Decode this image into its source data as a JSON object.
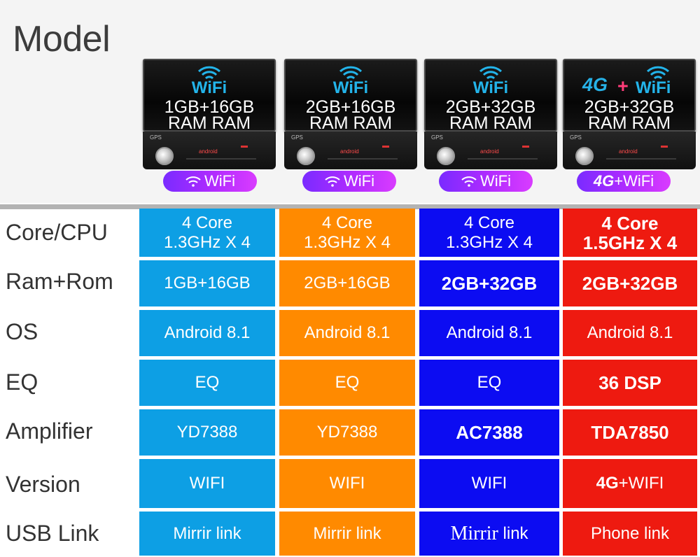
{
  "header": {
    "title": "Model"
  },
  "devices": [
    {
      "wifi_label": "WiFi",
      "spec_line1": "1GB+16GB",
      "spec_line2": "RAM  RAM",
      "badge": "WiFi",
      "brand_gps": "GPS",
      "brand_android": "android"
    },
    {
      "wifi_label": "WiFi",
      "spec_line1": "2GB+16GB",
      "spec_line2": "RAM  RAM",
      "badge": "WiFi",
      "brand_gps": "GPS",
      "brand_android": "android"
    },
    {
      "wifi_label": "WiFi",
      "spec_line1": "2GB+32GB",
      "spec_line2": "RAM  RAM",
      "badge": "WiFi",
      "brand_gps": "GPS",
      "brand_android": "android"
    },
    {
      "wifi_label": "WiFi",
      "g4_label": "4G",
      "plus": "+",
      "spec_line1": "2GB+32GB",
      "spec_line2": "RAM  RAM",
      "badge_4g": "4G",
      "badge": "+WiFi",
      "brand_gps": "GPS",
      "brand_android": "android"
    }
  ],
  "table": {
    "rows": [
      {
        "label": "Core/CPU",
        "cells": [
          {
            "line1": "4 Core",
            "line2": "1.3GHz  X 4"
          },
          {
            "line1": "4 Core",
            "line2": "1.3GHz  X 4"
          },
          {
            "line1": "4 Core",
            "line2": "1.3GHz  X 4"
          },
          {
            "line1": "4 Core",
            "line2": "1.5GHz  X 4"
          }
        ]
      },
      {
        "label": "Ram+Rom",
        "cells": [
          "1GB+16GB",
          "2GB+16GB",
          "2GB+32GB",
          "2GB+32GB"
        ]
      },
      {
        "label": "OS",
        "cells": [
          "Android 8.1",
          "Android 8.1",
          "Android 8.1",
          "Android 8.1"
        ]
      },
      {
        "label": "EQ",
        "cells": [
          "EQ",
          "EQ",
          "EQ",
          "36 DSP"
        ]
      },
      {
        "label": "Amplifier",
        "cells": [
          "YD7388",
          "YD7388",
          "AC7388",
          "TDA7850"
        ]
      },
      {
        "label": "Version",
        "cells": [
          "WIFI",
          "WIFI",
          "WIFI",
          {
            "bold": "4G",
            "rest": "+WIFI"
          }
        ]
      },
      {
        "label": "USB Link",
        "cells": [
          "Mirrir link",
          "Mirrir link",
          {
            "serif": "Mirrir",
            "rest": " link"
          },
          "Phone link"
        ]
      }
    ]
  },
  "colors": {
    "blue": "#0d9fe4",
    "orange": "#ff8a00",
    "navy": "#0c0cf2",
    "red": "#ee1a10",
    "badge_purple": "#a42bff"
  }
}
